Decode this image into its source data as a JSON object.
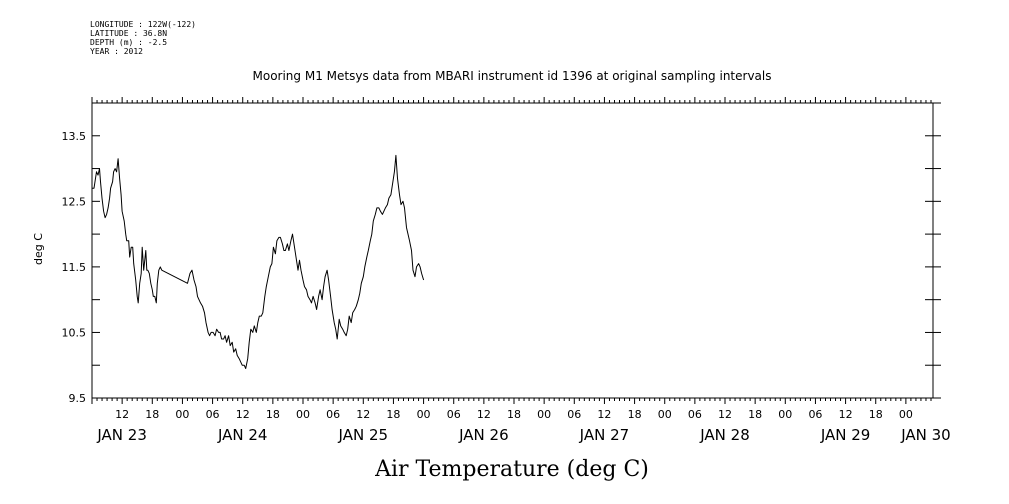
{
  "metadata": [
    "LONGITUDE : 122W(-122)",
    "LATITUDE : 36.8N",
    "DEPTH (m) : -2.5",
    "YEAR : 2012"
  ],
  "chart_data": {
    "type": "line",
    "title": "Mooring M1 Metsys data from MBARI instrument id 1396 at original sampling intervals",
    "xlabel": "Air Temperature (deg C)",
    "ylabel": "deg C",
    "ylim": [
      9.5,
      14.0
    ],
    "yticks": [
      9.5,
      10.5,
      11.5,
      12.5,
      13.5
    ],
    "x_unit": "hours since 2012-01-22 00:00 UTC",
    "xlim": [
      6,
      72
    ],
    "hour_tick_labels": [
      {
        "x": 12,
        "label": "12"
      },
      {
        "x": 18,
        "label": "18"
      },
      {
        "x": 24,
        "label": "00"
      },
      {
        "x": 30,
        "label": "06"
      },
      {
        "x": 36,
        "label": "12"
      },
      {
        "x": 42,
        "label": "18"
      },
      {
        "x": 48,
        "label": "00"
      },
      {
        "x": 54,
        "label": "06"
      },
      {
        "x": 60,
        "label": "12"
      },
      {
        "x": 66,
        "label": "18"
      },
      {
        "x": 72,
        "label": "00"
      },
      {
        "x": 78,
        "label": "06"
      },
      {
        "x": 84,
        "label": "12"
      },
      {
        "x": 90,
        "label": "18"
      },
      {
        "x": 96,
        "label": "00"
      },
      {
        "x": 102,
        "label": "06"
      },
      {
        "x": 108,
        "label": "12"
      },
      {
        "x": 114,
        "label": "18"
      },
      {
        "x": 120,
        "label": "00"
      },
      {
        "x": 126,
        "label": "06"
      },
      {
        "x": 132,
        "label": "12"
      },
      {
        "x": 138,
        "label": "18"
      },
      {
        "x": 144,
        "label": "00"
      },
      {
        "x": 150,
        "label": "06"
      },
      {
        "x": 156,
        "label": "12"
      },
      {
        "x": 162,
        "label": "18"
      },
      {
        "x": 168,
        "label": "00"
      }
    ],
    "day_tick_labels": [
      {
        "x": 12,
        "label": "JAN 23"
      },
      {
        "x": 36,
        "label": "JAN 24"
      },
      {
        "x": 60,
        "label": "JAN 25"
      },
      {
        "x": 84,
        "label": "JAN 26"
      },
      {
        "x": 108,
        "label": "JAN 27"
      },
      {
        "x": 132,
        "label": "JAN 28"
      },
      {
        "x": 156,
        "label": "JAN 29"
      },
      {
        "x": 172,
        "label": "JAN 30"
      }
    ],
    "series": [
      {
        "color": "#000000",
        "x": [
          6.0,
          6.4,
          6.9,
          7.2,
          7.5,
          7.7,
          8.0,
          8.3,
          8.6,
          8.9,
          9.2,
          9.5,
          9.7,
          10.1,
          10.3,
          10.6,
          10.9,
          11.2,
          11.5,
          11.8,
          12.0,
          12.4,
          12.7,
          12.9,
          13.3,
          13.5,
          13.8,
          14.1,
          14.3,
          14.7,
          15.0,
          15.2,
          15.5,
          15.8,
          16.0,
          16.3,
          16.7,
          16.9,
          17.1,
          17.4,
          17.7,
          18.0,
          18.2,
          18.5,
          18.8,
          19.0,
          19.3,
          19.6,
          19.9,
          25.0,
          25.5,
          25.9,
          26.3,
          26.7,
          27.0,
          27.3,
          27.6,
          28.0,
          28.4,
          28.7,
          29.1,
          29.4,
          29.7,
          30.1,
          30.5,
          30.8,
          31.2,
          31.5,
          31.8,
          32.2,
          32.5,
          32.8,
          33.2,
          33.5,
          33.9,
          34.2,
          34.6,
          34.9,
          35.3,
          35.6,
          35.9,
          36.3,
          36.6,
          37.0,
          37.3,
          37.6,
          38.0,
          38.3,
          38.7,
          39.0,
          39.3,
          39.7,
          40.0,
          40.4,
          40.7,
          41.1,
          41.5,
          41.8,
          42.1,
          42.5,
          42.8,
          43.2,
          43.5,
          43.9,
          44.2,
          44.5,
          44.9,
          45.2,
          45.6,
          45.9,
          46.3,
          46.6,
          47.0,
          47.3,
          47.6,
          48.0,
          48.3,
          48.7,
          49.0,
          49.4,
          49.7,
          50.0,
          50.4,
          50.7,
          51.1,
          51.4,
          51.8,
          52.1,
          52.4,
          52.8,
          53.1,
          53.5,
          53.8,
          54.2,
          54.5,
          54.8,
          55.2,
          55.5,
          55.9,
          56.2,
          56.6,
          56.9,
          57.2,
          57.6,
          57.9,
          58.3,
          58.6,
          59.0,
          59.3,
          59.6,
          60.0,
          60.3,
          60.7,
          61.0,
          61.4,
          61.7,
          62.0,
          62.4,
          62.7,
          63.1,
          63.4,
          63.8,
          64.1,
          64.4,
          64.8,
          65.1,
          65.5,
          65.8,
          66.2,
          66.5,
          66.8,
          67.2,
          67.5,
          67.9,
          68.2,
          68.6,
          68.9,
          69.2,
          69.6,
          69.9,
          70.3,
          70.6,
          71.0,
          71.3,
          71.6,
          72.0
        ],
        "values": [
          12.7,
          12.7,
          12.95,
          12.9,
          13.0,
          12.8,
          12.55,
          12.35,
          12.25,
          12.3,
          12.4,
          12.55,
          12.7,
          12.8,
          12.95,
          13.0,
          12.95,
          13.15,
          12.85,
          12.6,
          12.35,
          12.2,
          12.0,
          11.9,
          11.9,
          11.65,
          11.8,
          11.8,
          11.55,
          11.3,
          11.05,
          10.95,
          11.25,
          11.4,
          11.8,
          11.45,
          11.75,
          11.45,
          11.45,
          11.4,
          11.25,
          11.15,
          11.05,
          11.05,
          10.95,
          11.25,
          11.45,
          11.5,
          11.45,
          11.25,
          11.4,
          11.45,
          11.3,
          11.2,
          11.05,
          11.0,
          10.95,
          10.9,
          10.8,
          10.65,
          10.5,
          10.45,
          10.5,
          10.5,
          10.45,
          10.55,
          10.5,
          10.5,
          10.4,
          10.4,
          10.45,
          10.35,
          10.45,
          10.3,
          10.35,
          10.2,
          10.25,
          10.15,
          10.1,
          10.05,
          10.0,
          10.0,
          9.95,
          10.1,
          10.35,
          10.55,
          10.5,
          10.6,
          10.5,
          10.65,
          10.75,
          10.75,
          10.8,
          11.05,
          11.2,
          11.35,
          11.5,
          11.55,
          11.8,
          11.7,
          11.9,
          11.95,
          11.95,
          11.85,
          11.75,
          11.75,
          11.85,
          11.75,
          11.9,
          12.0,
          11.8,
          11.65,
          11.45,
          11.6,
          11.45,
          11.3,
          11.2,
          11.15,
          11.05,
          11.0,
          10.95,
          11.05,
          10.95,
          10.85,
          11.05,
          11.15,
          11.0,
          11.2,
          11.35,
          11.45,
          11.3,
          11.05,
          10.85,
          10.65,
          10.55,
          10.4,
          10.7,
          10.6,
          10.55,
          10.5,
          10.45,
          10.55,
          10.75,
          10.65,
          10.8,
          10.85,
          10.9,
          11.0,
          11.1,
          11.25,
          11.35,
          11.5,
          11.65,
          11.75,
          11.9,
          12.0,
          12.2,
          12.3,
          12.4,
          12.4,
          12.35,
          12.3,
          12.35,
          12.4,
          12.45,
          12.55,
          12.6,
          12.75,
          12.95,
          13.2,
          12.85,
          12.6,
          12.45,
          12.5,
          12.4,
          12.1,
          12.0,
          11.9,
          11.75,
          11.45,
          11.35,
          11.5,
          11.55,
          11.5,
          11.4,
          11.3
        ]
      }
    ],
    "grid": false,
    "legend": "none"
  }
}
